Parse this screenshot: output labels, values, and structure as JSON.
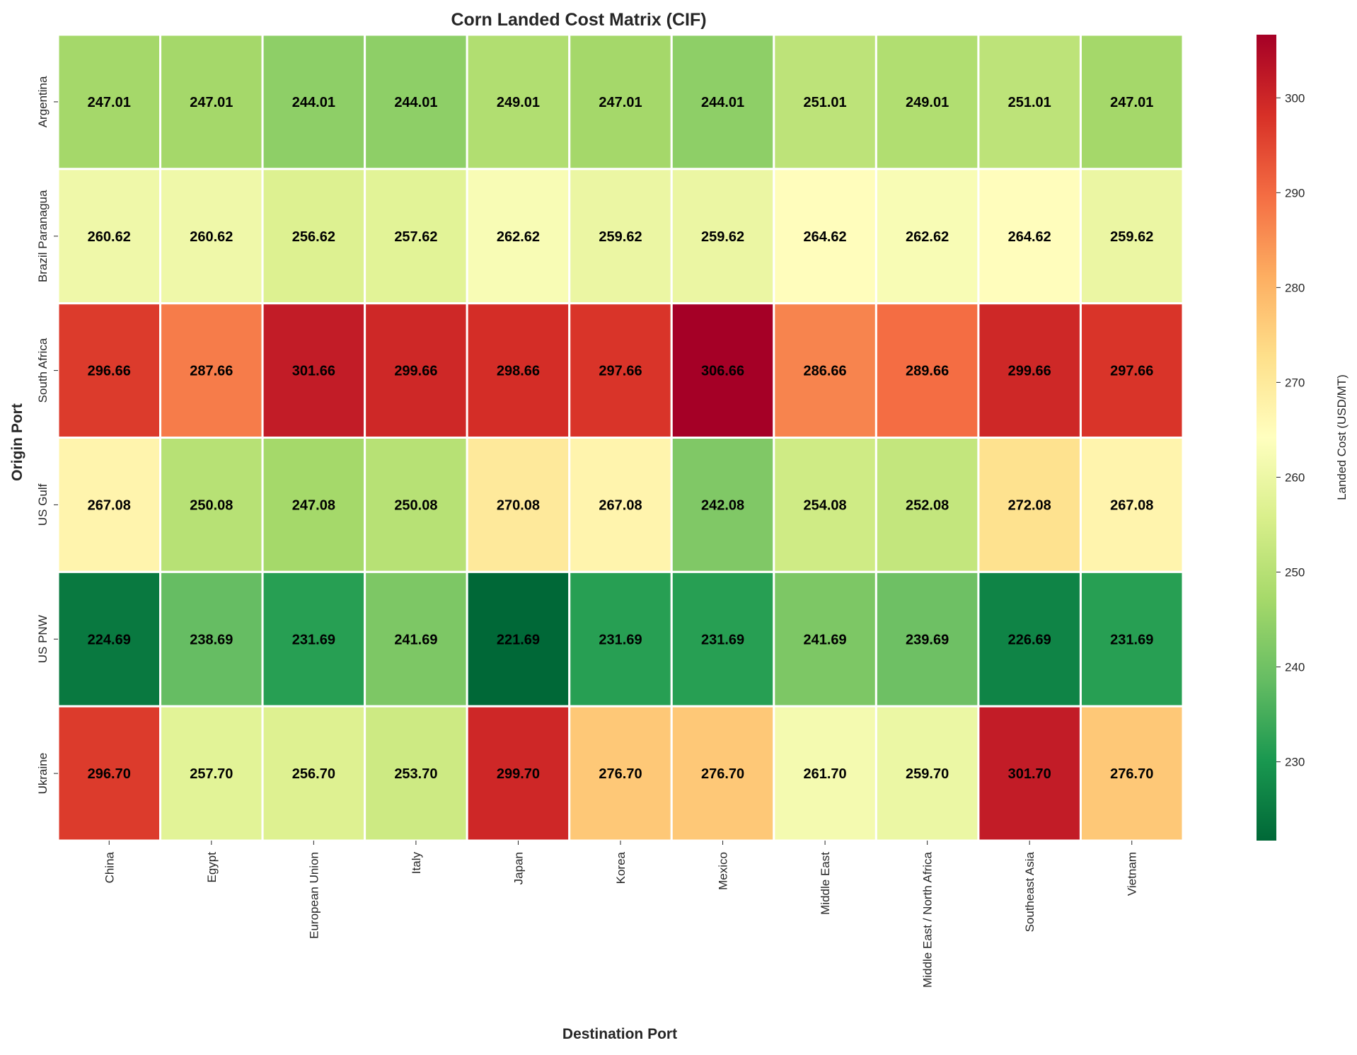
{
  "chart_data": {
    "type": "heatmap",
    "title": "Corn Landed Cost Matrix (CIF)",
    "xlabel": "Destination Port",
    "ylabel": "Origin Port",
    "colorbar_label": "Landed Cost (USD/MT)",
    "colormap": "RdYlGn_r",
    "colormap_stops": [
      "#006837",
      "#1a9850",
      "#66bd63",
      "#a6d96a",
      "#d9ef8b",
      "#ffffbf",
      "#fee08b",
      "#fdae61",
      "#f46d43",
      "#d73027",
      "#a50026"
    ],
    "value_range": [
      221.69,
      306.66
    ],
    "colorbar_ticks": [
      230,
      240,
      250,
      260,
      270,
      280,
      290,
      300
    ],
    "annotation_color": "#000000",
    "cell_border_color": "#ffffff",
    "columns": [
      "China",
      "Egypt",
      "European Union",
      "Italy",
      "Japan",
      "Korea",
      "Mexico",
      "Middle East",
      "Middle East / North Africa",
      "Southeast Asia",
      "Vietnam"
    ],
    "rows": [
      "Argentina",
      "Brazil Paranagua",
      "South Africa",
      "US Gulf",
      "US PNW",
      "Ukraine"
    ],
    "values": [
      [
        247.01,
        247.01,
        244.01,
        244.01,
        249.01,
        247.01,
        244.01,
        251.01,
        249.01,
        251.01,
        247.01
      ],
      [
        260.62,
        260.62,
        256.62,
        257.62,
        262.62,
        259.62,
        259.62,
        264.62,
        262.62,
        264.62,
        259.62
      ],
      [
        296.66,
        287.66,
        301.66,
        299.66,
        298.66,
        297.66,
        306.66,
        286.66,
        289.66,
        299.66,
        297.66
      ],
      [
        267.08,
        250.08,
        247.08,
        250.08,
        270.08,
        267.08,
        242.08,
        254.08,
        252.08,
        272.08,
        267.08
      ],
      [
        224.69,
        238.69,
        231.69,
        241.69,
        221.69,
        231.69,
        231.69,
        241.69,
        239.69,
        226.69,
        231.69
      ],
      [
        296.7,
        257.7,
        256.7,
        253.7,
        299.7,
        276.7,
        276.7,
        261.7,
        259.7,
        301.7,
        276.7
      ]
    ]
  }
}
